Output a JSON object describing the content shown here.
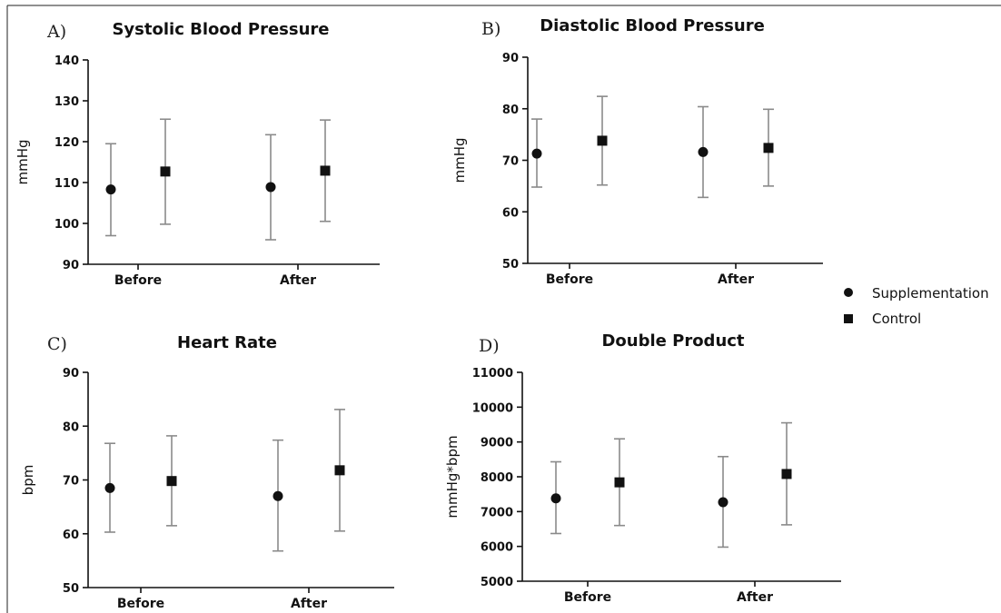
{
  "legend": {
    "items": [
      {
        "label": "Supplementation",
        "marker": "circle"
      },
      {
        "label": "Control",
        "marker": "square"
      }
    ]
  },
  "chart_data": [
    {
      "letter": "A)",
      "type": "scatter",
      "title": "Systolic Blood Pressure",
      "ylabel": "mmHg",
      "ylim": [
        90,
        140
      ],
      "yticks": [
        90,
        100,
        110,
        120,
        130,
        140
      ],
      "categories": [
        "Before",
        "After"
      ],
      "series": [
        {
          "name": "Supplementation",
          "marker": "circle",
          "values": [
            108.3,
            108.9
          ],
          "err_low": [
            97,
            96
          ],
          "err_high": [
            119.5,
            121.7
          ]
        },
        {
          "name": "Control",
          "marker": "square",
          "values": [
            112.7,
            112.9
          ],
          "err_low": [
            99.8,
            100.5
          ],
          "err_high": [
            125.5,
            125.3
          ]
        }
      ]
    },
    {
      "letter": "B)",
      "type": "scatter",
      "title": "Diastolic Blood Pressure",
      "ylabel": "mmHg",
      "ylim": [
        50,
        90
      ],
      "yticks": [
        50,
        60,
        70,
        80,
        90
      ],
      "categories": [
        "Before",
        "After"
      ],
      "series": [
        {
          "name": "Supplementation",
          "marker": "circle",
          "values": [
            71.3,
            71.6
          ],
          "err_low": [
            64.8,
            62.8
          ],
          "err_high": [
            78,
            80.4
          ]
        },
        {
          "name": "Control",
          "marker": "square",
          "values": [
            73.8,
            72.4
          ],
          "err_low": [
            65.2,
            65
          ],
          "err_high": [
            82.4,
            79.9
          ]
        }
      ]
    },
    {
      "letter": "C)",
      "type": "scatter",
      "title": "Heart Rate",
      "ylabel": "bpm",
      "ylim": [
        50,
        90
      ],
      "yticks": [
        50,
        60,
        70,
        80,
        90
      ],
      "categories": [
        "Before",
        "After"
      ],
      "series": [
        {
          "name": "Supplementation",
          "marker": "circle",
          "values": [
            68.5,
            67
          ],
          "err_low": [
            60.3,
            56.8
          ],
          "err_high": [
            76.8,
            77.4
          ]
        },
        {
          "name": "Control",
          "marker": "square",
          "values": [
            69.8,
            71.8
          ],
          "err_low": [
            61.5,
            60.5
          ],
          "err_high": [
            78.2,
            83.1
          ]
        }
      ]
    },
    {
      "letter": "D)",
      "type": "scatter",
      "title": "Double Product",
      "ylabel": "mmHg*bpm",
      "ylim": [
        5000,
        11000
      ],
      "yticks": [
        5000,
        6000,
        7000,
        8000,
        9000,
        10000,
        11000
      ],
      "categories": [
        "Before",
        "After"
      ],
      "series": [
        {
          "name": "Supplementation",
          "marker": "circle",
          "values": [
            7380,
            7270
          ],
          "err_low": [
            6370,
            5980
          ],
          "err_high": [
            8430,
            8580
          ]
        },
        {
          "name": "Control",
          "marker": "square",
          "values": [
            7840,
            8080
          ],
          "err_low": [
            6600,
            6620
          ],
          "err_high": [
            9090,
            9550
          ]
        }
      ]
    }
  ]
}
